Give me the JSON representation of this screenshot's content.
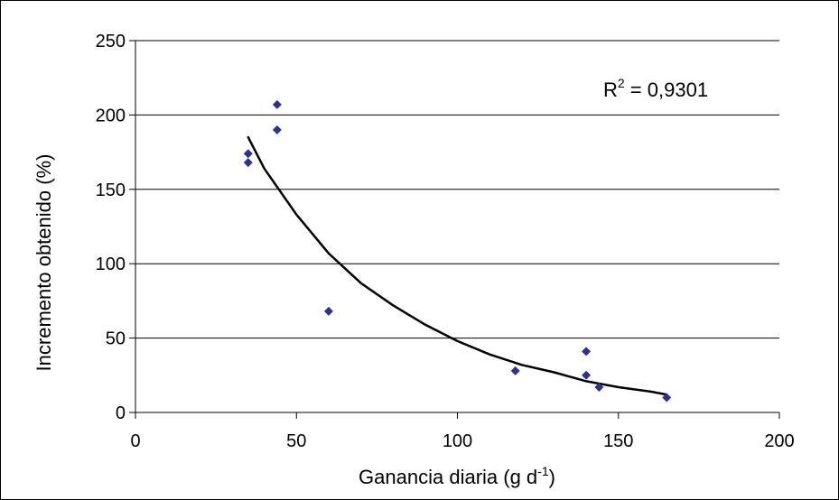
{
  "chart_data": {
    "type": "scatter",
    "xlabel": "Ganancia diaria (g d",
    "xlabel_sup": "-1",
    "xlabel_end": ")",
    "ylabel": "Incremento obtenido (%)",
    "xlim": [
      0,
      200
    ],
    "ylim": [
      0,
      250
    ],
    "x_ticks": [
      "0",
      "50",
      "100",
      "150",
      "200"
    ],
    "y_ticks": [
      "0",
      "50",
      "100",
      "150",
      "200",
      "250"
    ],
    "grid": "horizontal",
    "annotation": {
      "prefix": "R",
      "sup": "2",
      "suffix": " = 0,9301"
    },
    "colors": {
      "points": "#2e3192",
      "trend": "#000000",
      "grid": "#000000"
    },
    "points": [
      {
        "x": 35,
        "y": 174
      },
      {
        "x": 35,
        "y": 168
      },
      {
        "x": 44,
        "y": 207
      },
      {
        "x": 44,
        "y": 190
      },
      {
        "x": 60,
        "y": 68
      },
      {
        "x": 118,
        "y": 28
      },
      {
        "x": 140,
        "y": 41
      },
      {
        "x": 140,
        "y": 25
      },
      {
        "x": 144,
        "y": 17
      },
      {
        "x": 165,
        "y": 10
      }
    ],
    "trendline": {
      "type": "curve",
      "points": [
        {
          "x": 35,
          "y": 185
        },
        {
          "x": 40,
          "y": 164
        },
        {
          "x": 50,
          "y": 133
        },
        {
          "x": 60,
          "y": 107
        },
        {
          "x": 70,
          "y": 87
        },
        {
          "x": 80,
          "y": 72
        },
        {
          "x": 90,
          "y": 59
        },
        {
          "x": 100,
          "y": 48
        },
        {
          "x": 110,
          "y": 39
        },
        {
          "x": 120,
          "y": 32
        },
        {
          "x": 130,
          "y": 27
        },
        {
          "x": 140,
          "y": 21
        },
        {
          "x": 150,
          "y": 17
        },
        {
          "x": 160,
          "y": 14
        },
        {
          "x": 165,
          "y": 12
        }
      ]
    }
  }
}
